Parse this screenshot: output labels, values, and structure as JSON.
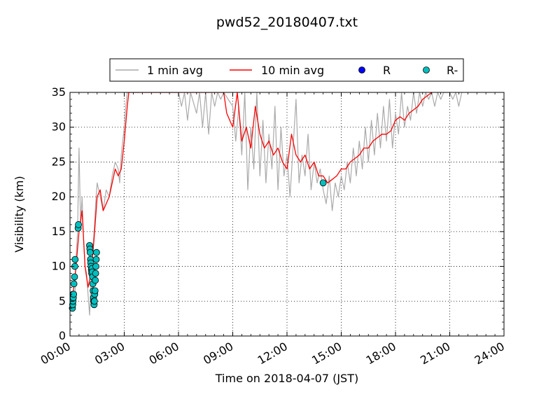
{
  "chart_data": {
    "type": "line",
    "title": "pwd52_20180407.txt",
    "xlabel": "Time on 2018-04-07 (JST)",
    "ylabel": "Visibility (km)",
    "xlim": [
      "00:00",
      "24:00"
    ],
    "ylim": [
      0,
      35
    ],
    "x_ticks": [
      "00:00",
      "03:00",
      "06:00",
      "09:00",
      "12:00",
      "15:00",
      "18:00",
      "21:00",
      "24:00"
    ],
    "y_ticks": [
      "0",
      "5",
      "10",
      "15",
      "20",
      "25",
      "30",
      "35"
    ],
    "grid": true,
    "legend_position": "top-center, above plot",
    "colors": {
      "one_min_avg": "#aaaaaa",
      "ten_min_avg": "#ff0000",
      "R": "#0000ff",
      "R_minus": "#00bfbf"
    },
    "legend": [
      "1 min avg",
      "10 min avg",
      "R",
      "R-"
    ],
    "series": [
      {
        "name": "1 min avg",
        "style": "line",
        "points": [
          [
            "00:00",
            3.5
          ],
          [
            "00:10",
            5
          ],
          [
            "00:15",
            4
          ],
          [
            "00:20",
            11
          ],
          [
            "00:25",
            15
          ],
          [
            "00:30",
            27
          ],
          [
            "00:35",
            16
          ],
          [
            "00:40",
            20
          ],
          [
            "00:45",
            14
          ],
          [
            "00:50",
            10
          ],
          [
            "00:55",
            9
          ],
          [
            "01:00",
            6
          ],
          [
            "01:05",
            3
          ],
          [
            "01:10",
            8
          ],
          [
            "01:15",
            12
          ],
          [
            "01:20",
            15
          ],
          [
            "01:25",
            19
          ],
          [
            "01:30",
            22
          ],
          [
            "01:40",
            20
          ],
          [
            "01:50",
            18
          ],
          [
            "02:00",
            21
          ],
          [
            "02:10",
            20
          ],
          [
            "02:20",
            23
          ],
          [
            "02:30",
            25
          ],
          [
            "02:40",
            24
          ],
          [
            "02:45",
            22
          ],
          [
            "02:50",
            26
          ],
          [
            "03:00",
            30
          ],
          [
            "03:05",
            33
          ],
          [
            "03:10",
            35
          ],
          [
            "06:00",
            35
          ],
          [
            "06:10",
            33
          ],
          [
            "06:20",
            35
          ],
          [
            "06:30",
            31
          ],
          [
            "06:40",
            35
          ],
          [
            "07:00",
            32
          ],
          [
            "07:10",
            35
          ],
          [
            "07:20",
            30
          ],
          [
            "07:30",
            35
          ],
          [
            "07:40",
            29
          ],
          [
            "07:50",
            35
          ],
          [
            "08:00",
            33
          ],
          [
            "08:10",
            35
          ],
          [
            "08:20",
            34
          ],
          [
            "08:30",
            35
          ],
          [
            "09:00",
            33
          ],
          [
            "09:10",
            28
          ],
          [
            "09:20",
            33
          ],
          [
            "09:30",
            26
          ],
          [
            "09:40",
            35
          ],
          [
            "09:50",
            21
          ],
          [
            "10:00",
            30
          ],
          [
            "10:10",
            24
          ],
          [
            "10:20",
            35
          ],
          [
            "10:30",
            23
          ],
          [
            "10:40",
            31
          ],
          [
            "10:50",
            22
          ],
          [
            "11:00",
            29
          ],
          [
            "11:10",
            24
          ],
          [
            "11:20",
            33
          ],
          [
            "11:30",
            21
          ],
          [
            "11:40",
            30
          ],
          [
            "11:50",
            23
          ],
          [
            "12:00",
            26
          ],
          [
            "12:10",
            20
          ],
          [
            "12:20",
            27
          ],
          [
            "12:30",
            34
          ],
          [
            "12:40",
            22
          ],
          [
            "12:50",
            26
          ],
          [
            "13:00",
            23
          ],
          [
            "13:10",
            29
          ],
          [
            "13:20",
            21
          ],
          [
            "13:30",
            25
          ],
          [
            "13:40",
            22
          ],
          [
            "13:50",
            24
          ],
          [
            "14:00",
            21
          ],
          [
            "14:10",
            19
          ],
          [
            "14:20",
            23
          ],
          [
            "14:30",
            18
          ],
          [
            "14:40",
            22
          ],
          [
            "14:50",
            20
          ],
          [
            "15:00",
            23
          ],
          [
            "15:10",
            21
          ],
          [
            "15:20",
            25
          ],
          [
            "15:30",
            22
          ],
          [
            "15:40",
            27
          ],
          [
            "15:50",
            23
          ],
          [
            "16:00",
            28
          ],
          [
            "16:10",
            24
          ],
          [
            "16:20",
            30
          ],
          [
            "16:30",
            25
          ],
          [
            "16:40",
            31
          ],
          [
            "16:50",
            26
          ],
          [
            "17:00",
            32
          ],
          [
            "17:10",
            27
          ],
          [
            "17:20",
            33
          ],
          [
            "17:30",
            28
          ],
          [
            "17:40",
            34
          ],
          [
            "17:50",
            27
          ],
          [
            "18:00",
            32
          ],
          [
            "18:10",
            29
          ],
          [
            "18:20",
            35
          ],
          [
            "18:30",
            30
          ],
          [
            "18:40",
            33
          ],
          [
            "18:50",
            31
          ],
          [
            "19:00",
            35
          ],
          [
            "19:10",
            32
          ],
          [
            "19:20",
            35
          ],
          [
            "19:30",
            33
          ],
          [
            "19:40",
            35
          ],
          [
            "19:50",
            34
          ],
          [
            "20:00",
            35
          ],
          [
            "20:10",
            33
          ],
          [
            "20:20",
            35
          ],
          [
            "20:30",
            34
          ],
          [
            "20:40",
            35
          ],
          [
            "21:00",
            35
          ],
          [
            "21:10",
            34
          ],
          [
            "21:20",
            35
          ],
          [
            "21:30",
            33
          ],
          [
            "21:40",
            35
          ]
        ]
      },
      {
        "name": "10 min avg",
        "style": "line",
        "points": [
          [
            "00:00",
            5
          ],
          [
            "00:10",
            6
          ],
          [
            "00:20",
            10
          ],
          [
            "00:30",
            15
          ],
          [
            "00:40",
            18
          ],
          [
            "00:50",
            10
          ],
          [
            "01:00",
            7
          ],
          [
            "01:10",
            9
          ],
          [
            "01:20",
            14
          ],
          [
            "01:30",
            20
          ],
          [
            "01:40",
            21
          ],
          [
            "01:50",
            18
          ],
          [
            "02:00",
            19
          ],
          [
            "02:10",
            20
          ],
          [
            "02:20",
            22
          ],
          [
            "02:30",
            24
          ],
          [
            "02:40",
            23
          ],
          [
            "02:50",
            24
          ],
          [
            "03:00",
            28
          ],
          [
            "03:10",
            33
          ],
          [
            "03:15",
            35
          ],
          [
            "08:30",
            35
          ],
          [
            "08:40",
            32
          ],
          [
            "09:00",
            30
          ],
          [
            "09:15",
            35
          ],
          [
            "09:30",
            28
          ],
          [
            "09:45",
            30
          ],
          [
            "10:00",
            27
          ],
          [
            "10:15",
            33
          ],
          [
            "10:30",
            29
          ],
          [
            "10:45",
            27
          ],
          [
            "11:00",
            28
          ],
          [
            "11:15",
            26
          ],
          [
            "11:30",
            27
          ],
          [
            "11:45",
            25
          ],
          [
            "12:00",
            24
          ],
          [
            "12:15",
            29
          ],
          [
            "12:30",
            26
          ],
          [
            "12:45",
            25
          ],
          [
            "13:00",
            26
          ],
          [
            "13:15",
            24
          ],
          [
            "13:30",
            25
          ],
          [
            "13:45",
            23
          ],
          [
            "14:00",
            23
          ],
          [
            "14:15",
            22
          ],
          [
            "14:30",
            22.5
          ],
          [
            "14:45",
            23
          ],
          [
            "15:00",
            24
          ],
          [
            "15:15",
            24
          ],
          [
            "15:30",
            25
          ],
          [
            "15:45",
            25.5
          ],
          [
            "16:00",
            26
          ],
          [
            "16:15",
            27
          ],
          [
            "16:30",
            27
          ],
          [
            "16:45",
            28
          ],
          [
            "17:00",
            28.5
          ],
          [
            "17:15",
            29
          ],
          [
            "17:30",
            29
          ],
          [
            "17:45",
            29.5
          ],
          [
            "18:00",
            31
          ],
          [
            "18:15",
            31.5
          ],
          [
            "18:30",
            31
          ],
          [
            "18:45",
            32
          ],
          [
            "19:00",
            32.5
          ],
          [
            "19:15",
            33
          ],
          [
            "19:30",
            34
          ],
          [
            "19:45",
            34.5
          ],
          [
            "20:00",
            35
          ]
        ]
      },
      {
        "name": "R",
        "style": "marker",
        "points": [
          [
            "00:10",
            6.0
          ]
        ]
      },
      {
        "name": "R-",
        "style": "marker",
        "points": [
          [
            "00:08",
            4.0
          ],
          [
            "00:09",
            4.5
          ],
          [
            "00:10",
            5.0
          ],
          [
            "00:11",
            5.5
          ],
          [
            "00:12",
            6.0
          ],
          [
            "00:13",
            7.5
          ],
          [
            "00:15",
            8.5
          ],
          [
            "00:16",
            10.0
          ],
          [
            "00:17",
            11.0
          ],
          [
            "00:27",
            15.5
          ],
          [
            "00:28",
            16.0
          ],
          [
            "01:05",
            13.0
          ],
          [
            "01:06",
            12.5
          ],
          [
            "01:07",
            12.0
          ],
          [
            "01:08",
            11.0
          ],
          [
            "01:09",
            10.5
          ],
          [
            "01:10",
            10.0
          ],
          [
            "01:11",
            9.5
          ],
          [
            "01:12",
            9.0
          ],
          [
            "01:13",
            9.7
          ],
          [
            "01:14",
            9.2
          ],
          [
            "01:15",
            8.5
          ],
          [
            "01:16",
            7.5
          ],
          [
            "01:17",
            6.5
          ],
          [
            "01:18",
            5.5
          ],
          [
            "01:19",
            5.0
          ],
          [
            "01:20",
            4.5
          ],
          [
            "01:21",
            5.0
          ],
          [
            "01:22",
            6.0
          ],
          [
            "01:23",
            6.5
          ],
          [
            "01:24",
            8.0
          ],
          [
            "01:25",
            9.0
          ],
          [
            "01:26",
            10.0
          ],
          [
            "01:27",
            11.0
          ],
          [
            "01:28",
            12.0
          ],
          [
            "14:00",
            22.0
          ]
        ]
      }
    ]
  }
}
